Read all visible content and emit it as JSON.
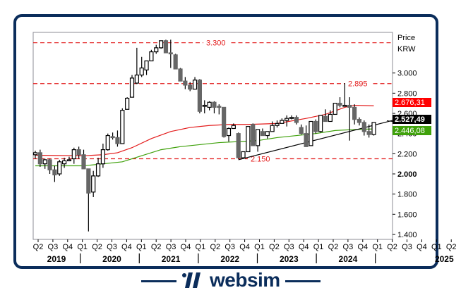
{
  "brand": {
    "name": "websim",
    "color": "#0b2d5b"
  },
  "chart_data": {
    "type": "candlestick",
    "title": "",
    "ylabel": "Price",
    "yunit": "KRW",
    "ylim": [
      1.35,
      3.45
    ],
    "grid": false,
    "yticks": [
      "3.000",
      "2.800",
      "2.600",
      "2.400",
      "2.200",
      "2.000",
      "1.800",
      "1.600",
      "1.400"
    ],
    "ytick_values": [
      3.0,
      2.8,
      2.6,
      2.4,
      2.2,
      2.0,
      1.8,
      1.6,
      1.4
    ],
    "quarter_labels": [
      "Q2",
      "Q3",
      "Q4",
      "Q1",
      "Q2",
      "Q3",
      "Q4",
      "Q1",
      "Q2",
      "Q3",
      "Q4",
      "Q1",
      "Q2",
      "Q3",
      "Q4",
      "Q1",
      "Q2",
      "Q3",
      "Q4",
      "Q1",
      "Q2",
      "Q3",
      "Q4",
      "Q1",
      "Q2",
      "Q3",
      "Q4",
      "Q1",
      "Q2"
    ],
    "years": [
      "2019",
      "2020",
      "2021",
      "2022",
      "2023",
      "2024",
      "2025"
    ],
    "horizontal_levels": [
      {
        "label": "3.300",
        "value": 3.3
      },
      {
        "label": "2.895",
        "value": 2.895
      },
      {
        "label": "2.150",
        "value": 2.15
      }
    ],
    "price_tags": [
      {
        "label": "2.676,31",
        "value": 2.676,
        "bg": "#ff0000",
        "fg": "#ffffff",
        "series": "MA long (red)"
      },
      {
        "label": "2.527,49",
        "value": 2.527,
        "bg": "#000000",
        "fg": "#ffffff",
        "series": "Last price"
      },
      {
        "label": "2.446,08",
        "value": 2.446,
        "bg": "#3fa10b",
        "fg": "#ffffff",
        "series": "MA (green)"
      }
    ],
    "colors": {
      "up_fill": "#ffffff",
      "down_fill": "#666666",
      "level": "#e31b1b",
      "ma_red": "#e31b1b",
      "ma_green": "#3fa10b",
      "trend": "#000000"
    },
    "candles_monthly_from": "2019-04",
    "candles": [
      [
        2.19,
        2.23,
        2.15,
        2.21
      ],
      [
        2.21,
        2.24,
        2.07,
        2.1
      ],
      [
        2.1,
        2.15,
        2.05,
        2.14
      ],
      [
        2.14,
        2.15,
        2.0,
        2.04
      ],
      [
        2.04,
        2.08,
        1.92,
        1.99
      ],
      [
        2.0,
        2.14,
        1.98,
        2.12
      ],
      [
        2.1,
        2.16,
        2.06,
        2.13
      ],
      [
        2.13,
        2.17,
        2.13,
        2.14
      ],
      [
        2.15,
        2.26,
        2.1,
        2.24
      ],
      [
        2.24,
        2.27,
        2.15,
        2.19
      ],
      [
        2.19,
        2.24,
        2.06,
        2.05
      ],
      [
        2.05,
        2.05,
        1.43,
        1.81
      ],
      [
        1.82,
        2.03,
        1.77,
        1.98
      ],
      [
        1.98,
        2.16,
        1.97,
        2.1
      ],
      [
        2.1,
        2.3,
        2.06,
        2.24
      ],
      [
        2.24,
        2.4,
        2.23,
        2.38
      ],
      [
        2.37,
        2.41,
        2.34,
        2.36
      ],
      [
        2.36,
        2.43,
        2.27,
        2.3
      ],
      [
        2.3,
        2.65,
        2.3,
        2.63
      ],
      [
        2.64,
        2.76,
        2.64,
        2.75
      ],
      [
        2.76,
        2.98,
        2.76,
        2.95
      ],
      [
        2.9,
        3.25,
        2.89,
        2.98
      ],
      [
        2.98,
        3.16,
        2.96,
        3.05
      ],
      [
        3.03,
        3.1,
        2.98,
        3.12
      ],
      [
        3.12,
        3.23,
        3.14,
        3.21
      ],
      [
        3.21,
        3.28,
        3.19,
        3.25
      ],
      [
        3.25,
        3.32,
        3.24,
        3.32
      ],
      [
        3.32,
        3.33,
        3.2,
        3.2
      ],
      [
        3.2,
        3.33,
        3.05,
        3.19
      ],
      [
        3.18,
        3.19,
        3.04,
        3.04
      ],
      [
        3.04,
        3.05,
        2.99,
        2.92
      ],
      [
        2.92,
        2.96,
        2.84,
        2.88
      ],
      [
        2.88,
        2.91,
        2.82,
        2.84
      ],
      [
        2.84,
        2.96,
        2.86,
        2.93
      ],
      [
        2.93,
        2.94,
        2.6,
        2.62
      ],
      [
        2.68,
        2.73,
        2.6,
        2.68
      ],
      [
        2.66,
        2.72,
        2.63,
        2.71
      ],
      [
        2.71,
        2.72,
        2.6,
        2.66
      ],
      [
        2.67,
        2.69,
        2.59,
        2.66
      ],
      [
        2.66,
        2.66,
        2.36,
        2.37
      ],
      [
        2.38,
        2.46,
        2.32,
        2.45
      ],
      [
        2.45,
        2.5,
        2.46,
        2.48
      ],
      [
        2.4,
        2.41,
        2.15,
        2.16
      ],
      [
        2.16,
        2.22,
        2.15,
        2.22
      ],
      [
        2.22,
        2.47,
        2.22,
        2.47
      ],
      [
        2.49,
        2.5,
        2.28,
        2.28
      ],
      [
        2.28,
        2.44,
        2.22,
        2.44
      ],
      [
        2.42,
        2.45,
        2.4,
        2.38
      ],
      [
        2.38,
        2.42,
        2.35,
        2.42
      ],
      [
        2.42,
        2.52,
        2.42,
        2.48
      ],
      [
        2.48,
        2.53,
        2.46,
        2.5
      ],
      [
        2.5,
        2.55,
        2.51,
        2.53
      ],
      [
        2.53,
        2.58,
        2.47,
        2.55
      ],
      [
        2.55,
        2.58,
        2.54,
        2.56
      ],
      [
        2.56,
        2.58,
        2.49,
        2.51
      ],
      [
        2.46,
        2.49,
        2.39,
        2.4
      ],
      [
        2.4,
        2.48,
        2.27,
        2.27
      ],
      [
        2.28,
        2.52,
        2.28,
        2.52
      ],
      [
        2.52,
        2.54,
        2.4,
        2.42
      ],
      [
        2.42,
        2.58,
        2.41,
        2.58
      ],
      [
        2.57,
        2.64,
        2.52,
        2.52
      ],
      [
        2.52,
        2.63,
        2.52,
        2.59
      ],
      [
        2.59,
        2.7,
        2.59,
        2.7
      ],
      [
        2.7,
        2.76,
        2.66,
        2.68
      ],
      [
        2.68,
        2.9,
        2.68,
        2.68
      ],
      [
        2.68,
        2.76,
        2.33,
        2.66
      ],
      [
        2.66,
        2.69,
        2.49,
        2.54
      ],
      [
        2.54,
        2.56,
        2.48,
        2.51
      ],
      [
        2.51,
        2.53,
        2.38,
        2.42
      ],
      [
        2.42,
        2.49,
        2.36,
        2.39
      ],
      [
        2.39,
        2.51,
        2.38,
        2.51
      ]
    ],
    "ma_red": [
      [
        0,
        2.185
      ],
      [
        10,
        2.18
      ],
      [
        14,
        2.19
      ],
      [
        17,
        2.21
      ],
      [
        20,
        2.26
      ],
      [
        24,
        2.35
      ],
      [
        28,
        2.42
      ],
      [
        32,
        2.46
      ],
      [
        36,
        2.48
      ],
      [
        40,
        2.49
      ],
      [
        44,
        2.49
      ],
      [
        50,
        2.5
      ],
      [
        56,
        2.55
      ],
      [
        60,
        2.59
      ],
      [
        64,
        2.66
      ],
      [
        66,
        2.68
      ],
      [
        70,
        2.675
      ]
    ],
    "ma_green": [
      [
        0,
        2.08
      ],
      [
        10,
        2.08
      ],
      [
        14,
        2.1
      ],
      [
        18,
        2.12
      ],
      [
        22,
        2.18
      ],
      [
        26,
        2.24
      ],
      [
        30,
        2.27
      ],
      [
        34,
        2.29
      ],
      [
        38,
        2.31
      ],
      [
        42,
        2.32
      ],
      [
        46,
        2.33
      ],
      [
        50,
        2.36
      ],
      [
        54,
        2.38
      ],
      [
        58,
        2.4
      ],
      [
        62,
        2.43
      ],
      [
        66,
        2.44
      ],
      [
        70,
        2.446
      ]
    ],
    "trendline": [
      [
        42,
        2.14
      ],
      [
        72,
        2.53
      ]
    ]
  }
}
